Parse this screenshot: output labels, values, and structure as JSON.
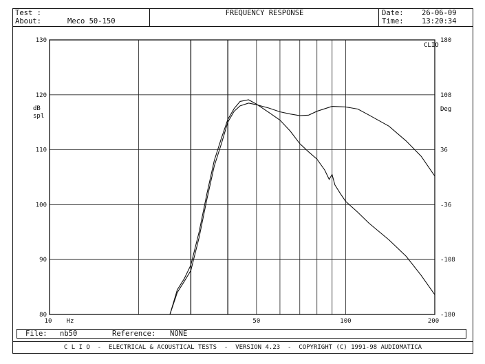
{
  "header": {
    "test_label": "Test :",
    "about_label": "About:",
    "about_value": "Meco 50-150",
    "title": "FREQUENCY RESPONSE",
    "date_label": "Date:",
    "date_value": "26-06-09",
    "time_label": "Time:",
    "time_value": "13:20:34"
  },
  "footer": {
    "file_label": "File:",
    "file_value": "nb50",
    "reference_label": "Reference:",
    "reference_value": "NONE",
    "banner": "C L I O  -  ELECTRICAL & ACOUSTICAL TESTS  -  VERSION 4.23  -  COPYRIGHT (C) 1991-98 AUDIOMATICA"
  },
  "chart_data": {
    "type": "line",
    "x_scale": "log",
    "xlim": [
      10,
      200
    ],
    "ylim_left": [
      80,
      130
    ],
    "ylim_right": [
      -180,
      180
    ],
    "left_ticks": [
      "130",
      "120",
      "110",
      "100",
      "90",
      "80"
    ],
    "right_ticks": [
      "180",
      "108",
      "36",
      "-36",
      "-108",
      "-180"
    ],
    "x_tick_labels": [
      "10",
      "Hz",
      "50",
      "100",
      "200"
    ],
    "ylabel_left": "dB\nspl",
    "ylabel_right": "Deg",
    "corner_label": "CLIO",
    "series": [
      {
        "axis": "left",
        "x": [
          25.5,
          27,
          28.5,
          30,
          32,
          34,
          36,
          38,
          40,
          42,
          44,
          47,
          50,
          55,
          60,
          65,
          70,
          75,
          80,
          90,
          100,
          110,
          120,
          140,
          160,
          180,
          200
        ],
        "y": [
          80,
          84,
          86,
          88,
          94,
          101,
          107,
          111,
          115,
          117,
          118,
          118.5,
          118.2,
          117.6,
          116.9,
          116.5,
          116.2,
          116.3,
          117,
          117.9,
          117.8,
          117.4,
          116.3,
          114.3,
          111.6,
          108.8,
          105.2
        ]
      },
      {
        "axis": "left",
        "x": [
          25.5,
          27,
          28.5,
          30,
          32,
          34,
          36,
          38,
          40,
          42,
          44,
          47,
          50,
          55,
          60,
          65,
          70,
          75,
          80,
          85,
          88,
          90,
          92,
          96,
          100,
          110,
          120,
          140,
          160,
          180,
          200
        ],
        "y": [
          80,
          84.5,
          86.5,
          89,
          95,
          102,
          108,
          112,
          115.5,
          117.5,
          118.8,
          119.1,
          118.3,
          116.8,
          115.4,
          113.4,
          111.1,
          109.6,
          108.3,
          106.3,
          104.6,
          105.5,
          103.6,
          102,
          100.6,
          98.6,
          96.6,
          93.6,
          90.6,
          87.1,
          83.6
        ]
      }
    ]
  }
}
